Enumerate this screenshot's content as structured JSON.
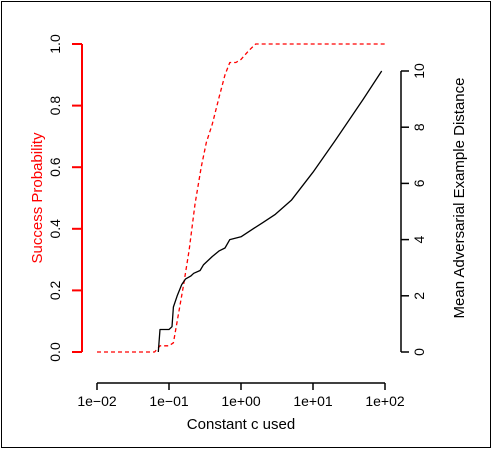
{
  "chart_data": {
    "type": "line",
    "xlabel": "Constant c used",
    "ylabel_left": "Success Probability",
    "ylabel_right": "Mean Adversarial Example Distance",
    "x_scale": "log10",
    "xlim": [
      0.01,
      100
    ],
    "ylim_left": [
      0,
      1
    ],
    "ylim_right": [
      0,
      10.5
    ],
    "x_ticks": [
      {
        "value": 0.01,
        "label": "1e−02"
      },
      {
        "value": 0.1,
        "label": "1e−01"
      },
      {
        "value": 1,
        "label": "1e+00"
      },
      {
        "value": 10,
        "label": "1e+01"
      },
      {
        "value": 100,
        "label": "1e+02"
      }
    ],
    "y_ticks_left": [
      {
        "value": 0.0,
        "label": "0.0"
      },
      {
        "value": 0.2,
        "label": "0.2"
      },
      {
        "value": 0.4,
        "label": "0.4"
      },
      {
        "value": 0.6,
        "label": "0.6"
      },
      {
        "value": 0.8,
        "label": "0.8"
      },
      {
        "value": 1.0,
        "label": "1.0"
      }
    ],
    "y_ticks_right": [
      {
        "value": 0,
        "label": "0"
      },
      {
        "value": 2,
        "label": "2"
      },
      {
        "value": 4,
        "label": "4"
      },
      {
        "value": 6,
        "label": "6"
      },
      {
        "value": 8,
        "label": "8"
      },
      {
        "value": 10,
        "label": "10"
      }
    ],
    "series": [
      {
        "axis": "left",
        "color": "#ff0000",
        "style": "dashed",
        "points": [
          [
            0.01,
            0.0
          ],
          [
            0.063,
            0.0
          ],
          [
            0.075,
            0.02
          ],
          [
            0.1,
            0.02
          ],
          [
            0.115,
            0.03
          ],
          [
            0.13,
            0.1
          ],
          [
            0.16,
            0.22
          ],
          [
            0.19,
            0.33
          ],
          [
            0.23,
            0.48
          ],
          [
            0.28,
            0.6
          ],
          [
            0.33,
            0.68
          ],
          [
            0.4,
            0.74
          ],
          [
            0.5,
            0.83
          ],
          [
            0.6,
            0.9
          ],
          [
            0.7,
            0.94
          ],
          [
            0.85,
            0.94
          ],
          [
            1.0,
            0.95
          ],
          [
            1.3,
            0.98
          ],
          [
            1.6,
            1.0
          ],
          [
            100,
            1.0
          ]
        ]
      },
      {
        "axis": "right",
        "color": "#000000",
        "style": "solid",
        "points": [
          [
            0.071,
            0.0
          ],
          [
            0.075,
            0.8
          ],
          [
            0.088,
            0.8
          ],
          [
            0.1,
            0.8
          ],
          [
            0.11,
            0.9
          ],
          [
            0.115,
            1.6
          ],
          [
            0.13,
            2.0
          ],
          [
            0.15,
            2.4
          ],
          [
            0.17,
            2.6
          ],
          [
            0.2,
            2.7
          ],
          [
            0.22,
            2.8
          ],
          [
            0.27,
            2.9
          ],
          [
            0.3,
            3.1
          ],
          [
            0.4,
            3.4
          ],
          [
            0.5,
            3.6
          ],
          [
            0.6,
            3.7
          ],
          [
            0.7,
            4.0
          ],
          [
            1.0,
            4.1
          ],
          [
            1.5,
            4.4
          ],
          [
            2.0,
            4.6
          ],
          [
            3.0,
            4.9
          ],
          [
            5.0,
            5.4
          ],
          [
            10,
            6.4
          ],
          [
            20,
            7.5
          ],
          [
            50,
            9.0
          ],
          [
            90,
            10.0
          ]
        ]
      }
    ]
  }
}
